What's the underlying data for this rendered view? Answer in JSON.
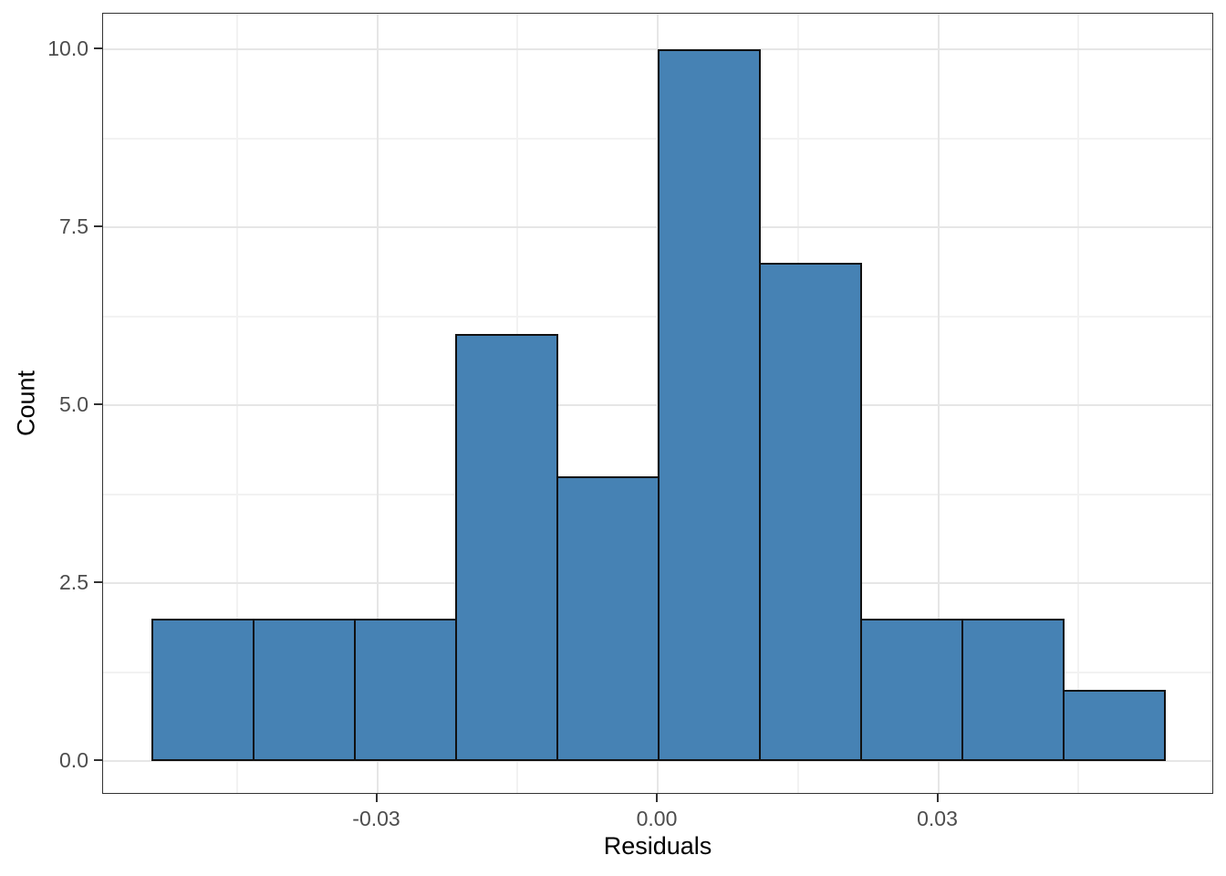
{
  "figure": {
    "kind": "histogram-plot",
    "background": "#ffffff"
  },
  "chart_data": {
    "type": "bar",
    "subtype": "histogram",
    "title": "",
    "xlabel": "Residuals",
    "ylabel": "Count",
    "bin_start": -0.05415,
    "bin_width": 0.01083,
    "bin_edges": [
      -0.054,
      -0.043,
      -0.032,
      -0.022,
      -0.011,
      0.0,
      0.011,
      0.022,
      0.032,
      0.043,
      0.054
    ],
    "counts": [
      2,
      2,
      2,
      6,
      4,
      10,
      7,
      2,
      2,
      1
    ],
    "total_observations": 38,
    "x_ticks": [
      {
        "value": -0.03,
        "label": "-0.03"
      },
      {
        "value": 0.0,
        "label": "0.00"
      },
      {
        "value": 0.03,
        "label": "0.03"
      }
    ],
    "x_minor_ticks": [
      -0.045,
      -0.015,
      0.015,
      0.045
    ],
    "y_ticks": [
      {
        "value": 0.0,
        "label": "0.0"
      },
      {
        "value": 2.5,
        "label": "2.5"
      },
      {
        "value": 5.0,
        "label": "5.0"
      },
      {
        "value": 7.5,
        "label": "7.5"
      },
      {
        "value": 10.0,
        "label": "10.0"
      }
    ],
    "y_minor_ticks": [
      1.25,
      3.75,
      6.25,
      8.75
    ],
    "xlim": [
      -0.0593,
      0.0595
    ],
    "ylim": [
      -0.47,
      10.5
    ],
    "grid": true,
    "legend": false,
    "colors": {
      "bar_fill": "#4682B4",
      "bar_stroke": "#111111",
      "panel_border": "#333333",
      "grid_major": "#E6E6E6",
      "grid_minor": "#F2F2F2",
      "tick_label": "#4D4D4D",
      "axis_title": "#000000",
      "tick_mark": "#333333"
    }
  }
}
